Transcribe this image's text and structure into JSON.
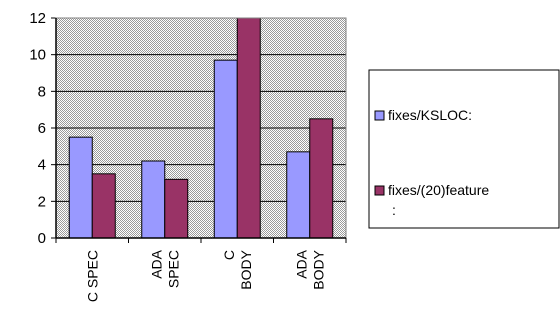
{
  "chart_data": {
    "type": "bar",
    "categories": [
      [
        "C SPEC"
      ],
      [
        "ADA",
        "SPEC"
      ],
      [
        "C",
        "BODY"
      ],
      [
        "ADA",
        "BODY"
      ]
    ],
    "series": [
      {
        "name": "fixes/KSLOC:",
        "values": [
          5.5,
          4.2,
          9.7,
          4.7
        ],
        "color": "#9999ff"
      },
      {
        "name": "fixes/(20)feature",
        "name_cont": ":",
        "values": [
          3.5,
          3.2,
          12.0,
          6.5
        ],
        "color": "#993366"
      }
    ],
    "ylim": [
      0,
      12
    ],
    "yticks": [
      0,
      2,
      4,
      6,
      8,
      10,
      12
    ],
    "grid": true,
    "plot_background": "dotted-gray",
    "legend_position": "right"
  }
}
